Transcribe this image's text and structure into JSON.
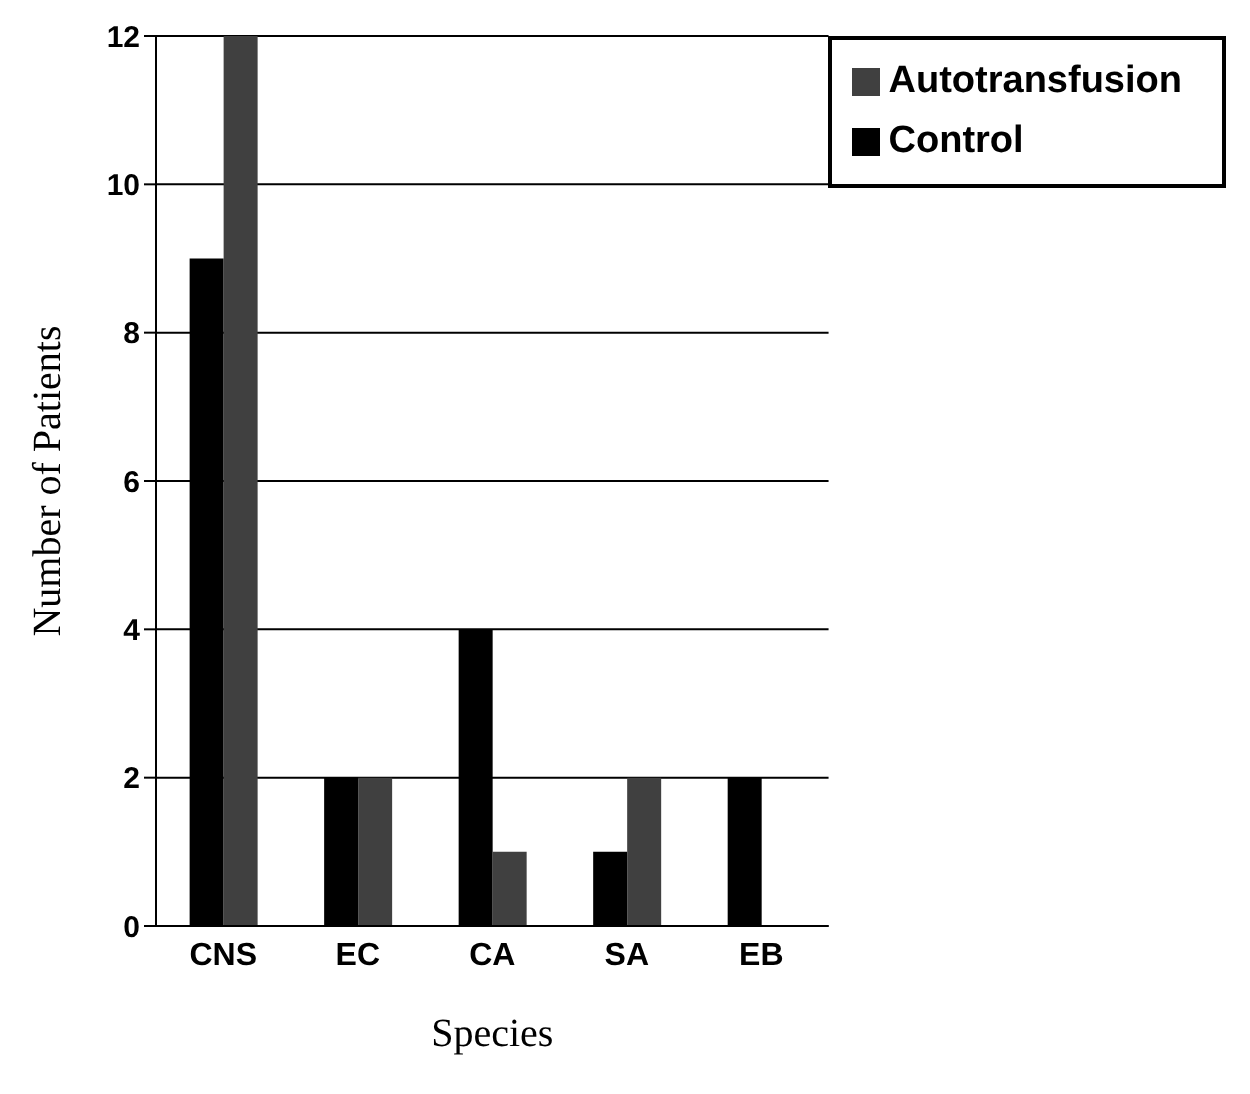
{
  "chart_data": {
    "type": "bar",
    "xlabel": "Species",
    "ylabel": "Number of Patients",
    "categories": [
      "CNS",
      "EC",
      "CA",
      "SA",
      "EB"
    ],
    "series": [
      {
        "name": "Control",
        "color": "#000000",
        "values": [
          9,
          2,
          4,
          1,
          2
        ]
      },
      {
        "name": "Autotransfusion",
        "color": "#404040",
        "values": [
          12,
          2,
          1,
          2,
          0
        ]
      }
    ],
    "ylim": [
      0,
      12
    ],
    "yticks": [
      0,
      2,
      4,
      6,
      8,
      10,
      12
    ],
    "grid": "y",
    "legend": "top right"
  }
}
